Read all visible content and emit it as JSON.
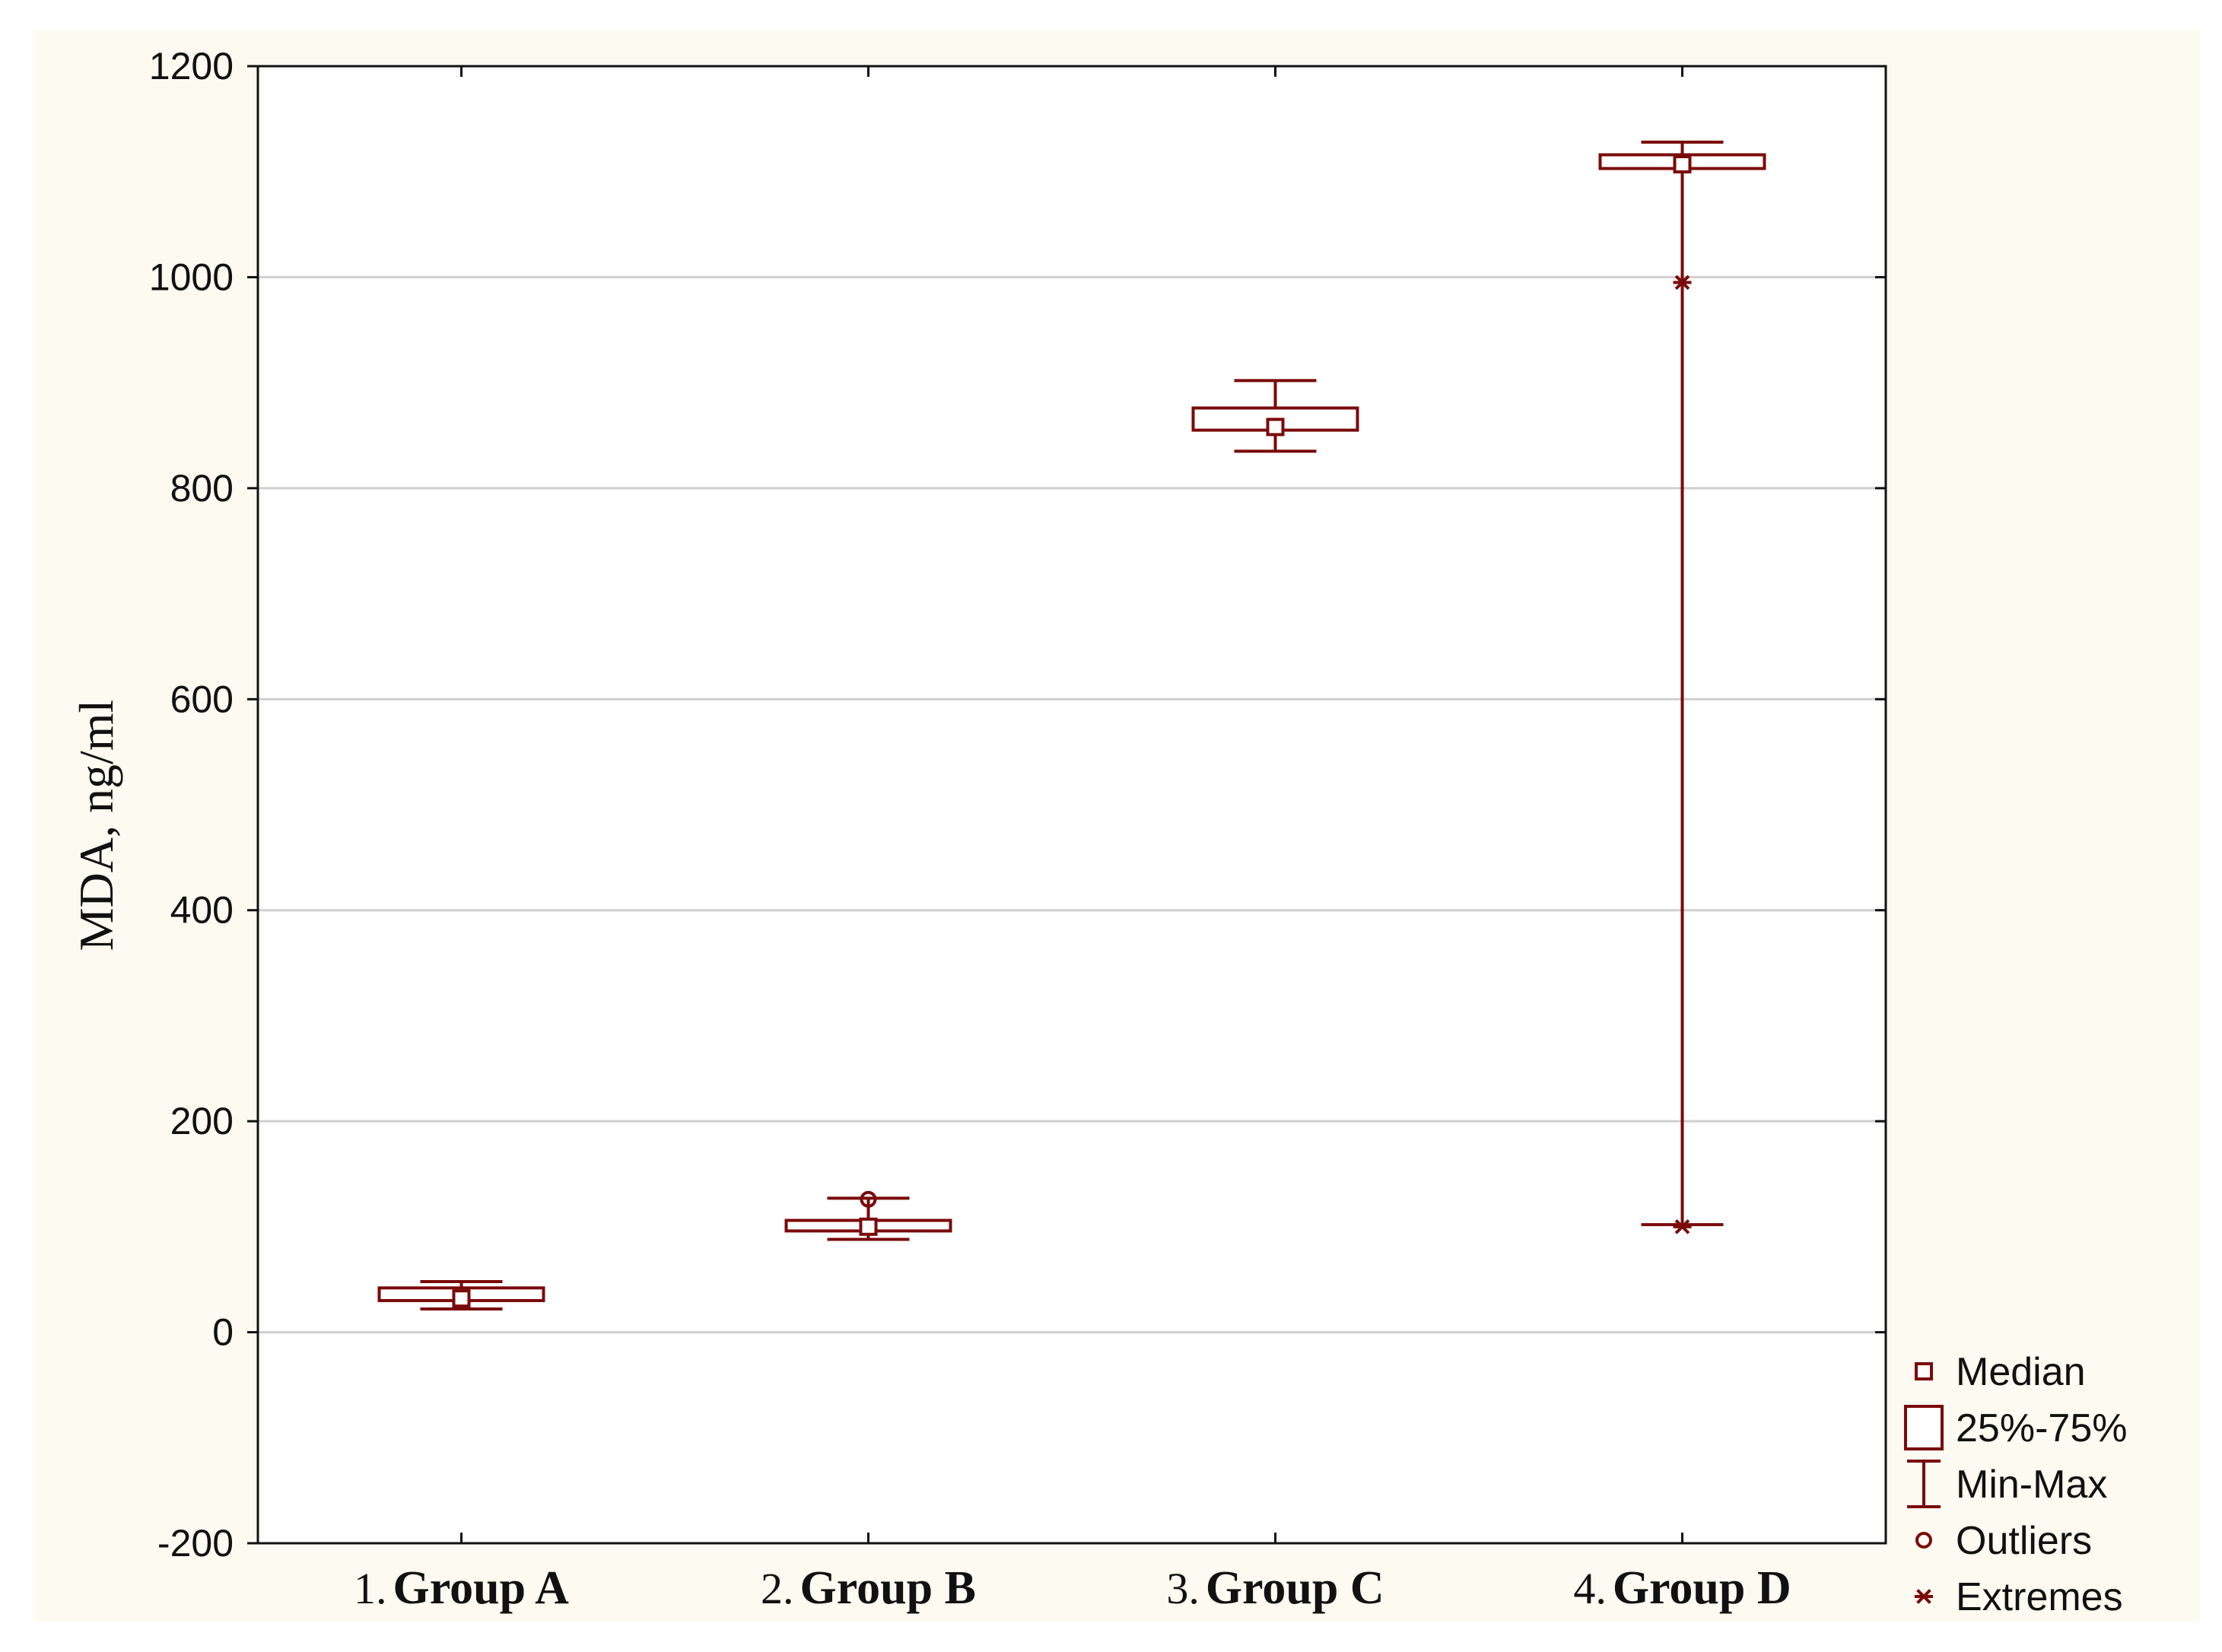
{
  "chart_data": {
    "type": "boxplot",
    "title": "",
    "xlabel": "",
    "ylabel": "MDA,  ng/ml",
    "ylim": [
      -200,
      1200
    ],
    "yticks": [
      -200,
      0,
      200,
      400,
      600,
      800,
      1000,
      1200
    ],
    "ytick_labels": [
      "-200",
      "0",
      "200",
      "400",
      "600",
      "800",
      "1000",
      "1200"
    ],
    "grid": true,
    "color": "#7a0a0a",
    "categories": [
      {
        "num": "1.",
        "name": "Group A",
        "min": 22,
        "q1": 30,
        "median": 32,
        "q3": 42,
        "max": 48,
        "outliers": [],
        "extremes": []
      },
      {
        "num": "2.",
        "name": "Group B",
        "min": 88,
        "q1": 96,
        "median": 100,
        "q3": 106,
        "max": 127,
        "outliers": [
          126
        ],
        "extremes": []
      },
      {
        "num": "3.",
        "name": "Group C",
        "min": 835,
        "q1": 855,
        "median": 858,
        "q3": 876,
        "max": 902,
        "outliers": [],
        "extremes": []
      },
      {
        "num": "4.",
        "name": "Group D",
        "min": 102,
        "q1": 1103,
        "median": 1107,
        "q3": 1116,
        "max": 1128,
        "outliers": [],
        "extremes": [
          995,
          100
        ]
      }
    ],
    "legend": {
      "position": "bottom-right",
      "items": [
        {
          "symbol": "median",
          "label": "Median"
        },
        {
          "symbol": "box",
          "label": "25%-75%"
        },
        {
          "symbol": "whisker",
          "label": "Min-Max"
        },
        {
          "symbol": "outlier",
          "label": "Outliers"
        },
        {
          "symbol": "extreme",
          "label": "Extremes"
        }
      ]
    }
  }
}
